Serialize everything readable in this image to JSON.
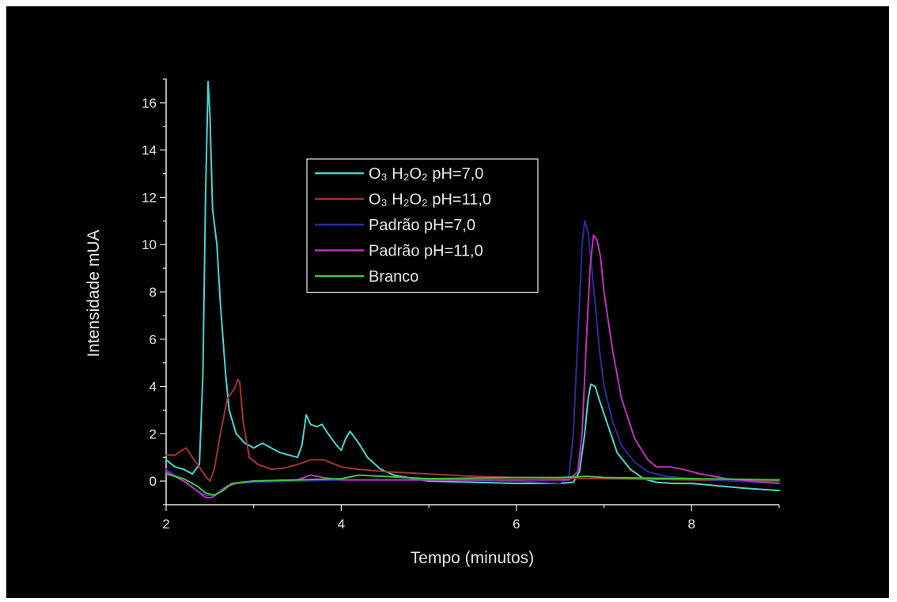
{
  "chart_data": {
    "type": "line",
    "xlabel": "Tempo (minutos)",
    "ylabel": "Intensidade mUA",
    "xlim": [
      2,
      9
    ],
    "ylim": [
      -1,
      17
    ],
    "xticks": [
      2,
      4,
      6,
      8
    ],
    "yticks": [
      0,
      2,
      4,
      6,
      8,
      10,
      12,
      14,
      16
    ],
    "grid": false,
    "legend_position": "center-left",
    "background": "#000000",
    "axis_color": "#e8e8e8",
    "series": [
      {
        "name": "O₃ H₂O₂ pH=7,0",
        "color": "#44d8d0",
        "x": [
          2.0,
          2.1,
          2.2,
          2.3,
          2.38,
          2.42,
          2.45,
          2.48,
          2.5,
          2.53,
          2.58,
          2.62,
          2.68,
          2.72,
          2.8,
          2.9,
          3.0,
          3.1,
          3.2,
          3.3,
          3.4,
          3.5,
          3.55,
          3.6,
          3.65,
          3.72,
          3.78,
          3.85,
          3.95,
          4.0,
          4.05,
          4.1,
          4.2,
          4.3,
          4.45,
          4.6,
          5.0,
          5.5,
          6.0,
          6.5,
          6.65,
          6.72,
          6.78,
          6.82,
          6.85,
          6.9,
          6.95,
          7.05,
          7.15,
          7.3,
          7.45,
          7.6,
          7.8,
          8.0,
          8.3,
          8.6,
          9.0
        ],
        "values": [
          0.9,
          0.6,
          0.5,
          0.3,
          0.7,
          4.5,
          12.0,
          16.9,
          15.5,
          11.5,
          10.0,
          7.5,
          4.5,
          3.0,
          2.0,
          1.6,
          1.4,
          1.6,
          1.4,
          1.2,
          1.1,
          1.0,
          1.5,
          2.8,
          2.4,
          2.3,
          2.4,
          2.0,
          1.5,
          1.3,
          1.8,
          2.1,
          1.6,
          1.0,
          0.5,
          0.25,
          0.0,
          -0.05,
          -0.1,
          -0.1,
          -0.05,
          0.4,
          2.0,
          3.5,
          4.1,
          4.0,
          3.4,
          2.3,
          1.2,
          0.5,
          0.1,
          -0.05,
          -0.1,
          -0.1,
          -0.2,
          -0.3,
          -0.4
        ]
      },
      {
        "name": "O₃ H₂O₂ pH=11,0",
        "color": "#a83232",
        "x": [
          2.0,
          2.1,
          2.18,
          2.23,
          2.3,
          2.38,
          2.45,
          2.5,
          2.55,
          2.62,
          2.7,
          2.78,
          2.82,
          2.84,
          2.88,
          2.95,
          3.05,
          3.2,
          3.35,
          3.5,
          3.65,
          3.8,
          4.0,
          4.2,
          4.5,
          5.0,
          5.5,
          6.0,
          7.0,
          8.0,
          9.0
        ],
        "values": [
          1.1,
          1.1,
          1.3,
          1.4,
          1.0,
          0.6,
          0.2,
          0.0,
          0.5,
          2.0,
          3.5,
          3.9,
          4.3,
          4.2,
          2.5,
          1.0,
          0.7,
          0.5,
          0.55,
          0.7,
          0.9,
          0.9,
          0.6,
          0.5,
          0.4,
          0.3,
          0.2,
          0.15,
          0.1,
          0.05,
          0.0
        ]
      },
      {
        "name": "Padrão pH=7,0",
        "color": "#2c2ca0",
        "x": [
          2.0,
          2.2,
          2.35,
          2.45,
          2.55,
          2.65,
          2.8,
          3.0,
          3.5,
          4.0,
          5.0,
          6.0,
          6.5,
          6.6,
          6.65,
          6.7,
          6.75,
          6.78,
          6.82,
          6.86,
          6.9,
          6.95,
          7.0,
          7.1,
          7.2,
          7.35,
          7.5,
          7.7,
          8.0,
          8.5,
          9.0
        ],
        "values": [
          0.5,
          0.0,
          -0.4,
          -0.6,
          -0.6,
          -0.3,
          -0.1,
          -0.05,
          0.0,
          0.05,
          0.05,
          0.0,
          -0.1,
          0.2,
          2.0,
          6.0,
          10.0,
          11.0,
          10.5,
          9.0,
          7.5,
          5.5,
          4.0,
          2.5,
          1.5,
          0.8,
          0.4,
          0.2,
          0.1,
          0.0,
          -0.1
        ]
      },
      {
        "name": "Padrão pH=11,0",
        "color": "#c030c0",
        "x": [
          2.0,
          2.2,
          2.35,
          2.45,
          2.52,
          2.6,
          2.7,
          2.85,
          3.0,
          3.5,
          3.65,
          3.8,
          4.0,
          5.0,
          6.0,
          6.6,
          6.7,
          6.75,
          6.8,
          6.84,
          6.88,
          6.92,
          6.96,
          7.0,
          7.1,
          7.2,
          7.35,
          7.5,
          7.6,
          7.75,
          7.9,
          8.1,
          8.4,
          9.0
        ],
        "values": [
          0.4,
          0.0,
          -0.4,
          -0.7,
          -0.7,
          -0.5,
          -0.2,
          -0.05,
          0.0,
          0.05,
          0.25,
          0.15,
          0.05,
          0.05,
          0.05,
          0.05,
          0.4,
          2.0,
          6.0,
          9.0,
          10.4,
          10.2,
          9.5,
          8.0,
          5.5,
          3.5,
          1.8,
          0.9,
          0.6,
          0.6,
          0.5,
          0.3,
          0.1,
          -0.1
        ]
      },
      {
        "name": "Branco",
        "color": "#3cc83c",
        "x": [
          2.0,
          2.2,
          2.35,
          2.45,
          2.55,
          2.65,
          2.75,
          3.0,
          3.5,
          4.0,
          4.2,
          5.0,
          6.0,
          6.5,
          6.8,
          7.0,
          8.0,
          9.0
        ],
        "values": [
          0.3,
          0.1,
          -0.2,
          -0.5,
          -0.6,
          -0.4,
          -0.1,
          0.0,
          0.05,
          0.1,
          0.25,
          0.1,
          0.15,
          0.15,
          0.2,
          0.15,
          0.1,
          0.05
        ]
      }
    ]
  }
}
